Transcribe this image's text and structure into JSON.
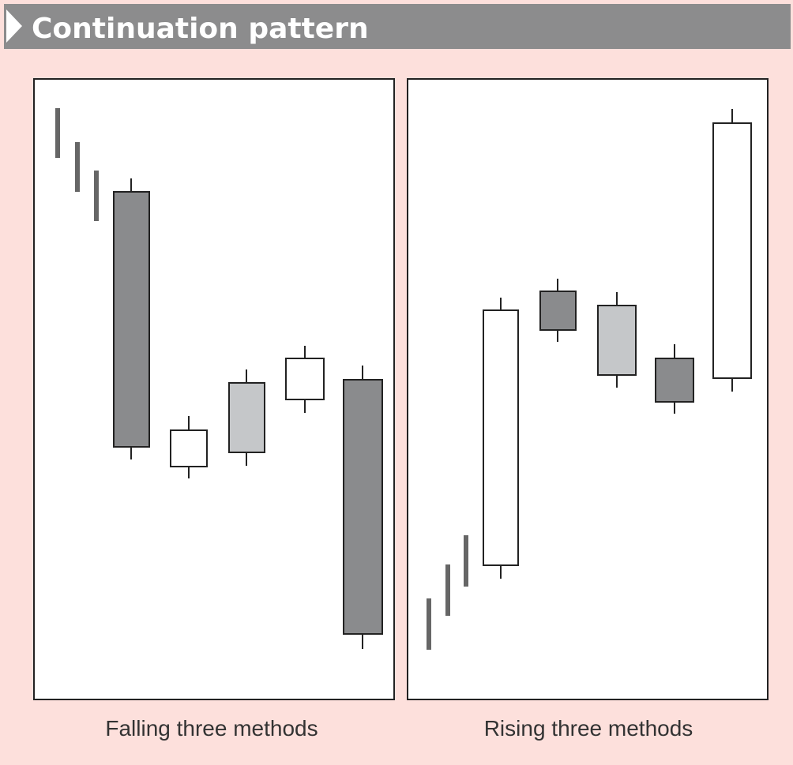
{
  "header": {
    "title": "Continuation pattern"
  },
  "panels": [
    {
      "caption": "Falling three methods"
    },
    {
      "caption": "Rising three methods"
    }
  ]
}
